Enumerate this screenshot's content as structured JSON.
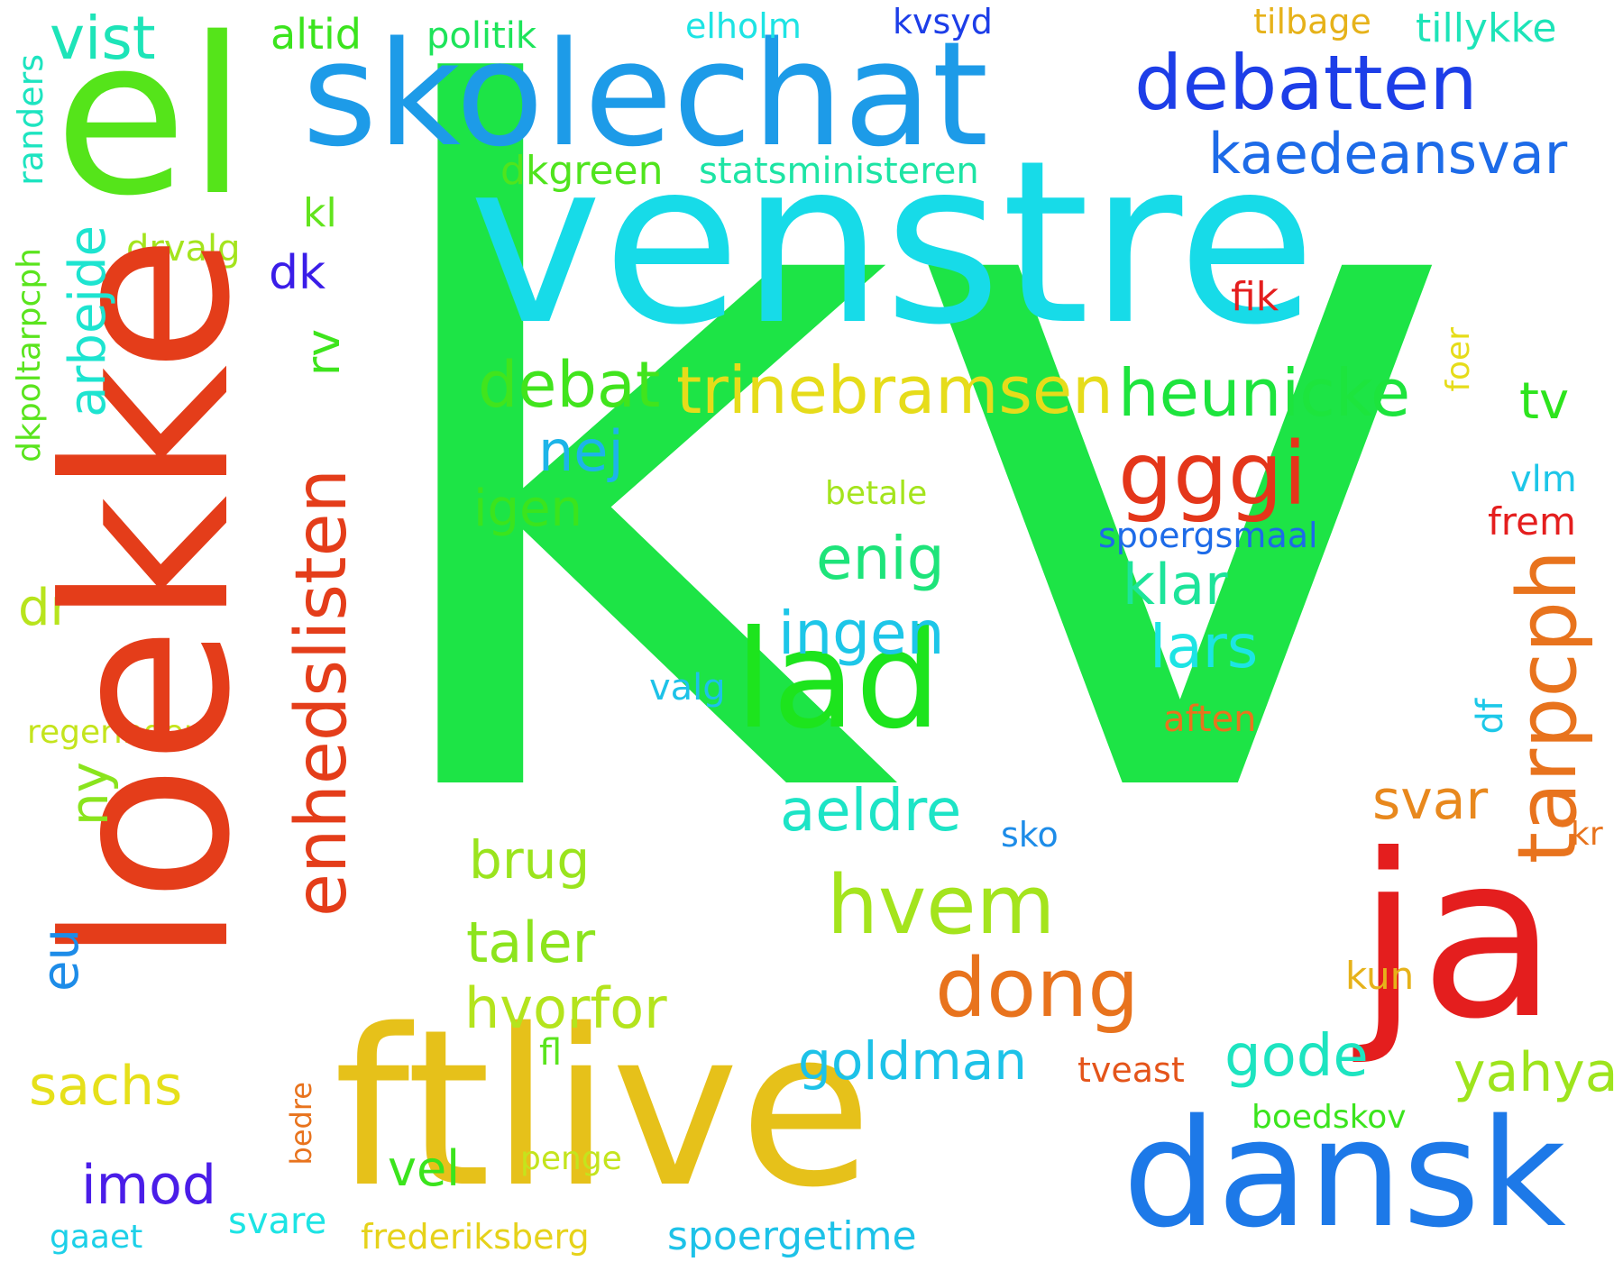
{
  "words": [
    {
      "id": "kv",
      "text": "kv",
      "color": "#1de446",
      "rot": false
    },
    {
      "id": "venstre",
      "text": "venstre",
      "color": "#17dbe8",
      "rot": false
    },
    {
      "id": "loekke",
      "text": "loekke",
      "color": "#e43d1a",
      "rot": true
    },
    {
      "id": "el",
      "text": "el",
      "color": "#55e41a",
      "rot": false
    },
    {
      "id": "skolechat",
      "text": "skolechat",
      "color": "#1d9be8",
      "rot": false
    },
    {
      "id": "ftlive",
      "text": "ftlive",
      "color": "#e6c11a",
      "rot": false
    },
    {
      "id": "ja",
      "text": "ja",
      "color": "#e41e1e",
      "rot": false
    },
    {
      "id": "dansk",
      "text": "dansk",
      "color": "#1d79e8",
      "rot": false
    },
    {
      "id": "lad",
      "text": "lad",
      "color": "#1de41d",
      "rot": false
    },
    {
      "id": "debatten",
      "text": "debatten",
      "color": "#1d3ee8",
      "rot": false
    },
    {
      "id": "enhedslisten",
      "text": "enhedslisten",
      "color": "#e43d1a",
      "rot": true
    },
    {
      "id": "tarpcph",
      "text": "tarpcph",
      "color": "#e8731d",
      "rot": true
    },
    {
      "id": "kaedeansvar",
      "text": "kaedeansvar",
      "color": "#1d6be8",
      "rot": false
    },
    {
      "id": "heunicke",
      "text": "heunicke",
      "color": "#1de43d",
      "rot": false
    },
    {
      "id": "trinebramsen",
      "text": "trinebramsen",
      "color": "#e6dc1a",
      "rot": false
    },
    {
      "id": "gggi",
      "text": "gggi",
      "color": "#e4361a",
      "rot": false
    },
    {
      "id": "dong",
      "text": "dong",
      "color": "#e8731d",
      "rot": false
    },
    {
      "id": "hvem",
      "text": "hvem",
      "color": "#a4e41d",
      "rot": false
    },
    {
      "id": "vist",
      "text": "vist",
      "color": "#1de4b8",
      "rot": false
    },
    {
      "id": "debat",
      "text": "debat",
      "color": "#41e41d",
      "rot": false
    },
    {
      "id": "arbejde",
      "text": "arbejde",
      "color": "#1de4d0",
      "rot": true
    },
    {
      "id": "nej",
      "text": "nej",
      "color": "#1db4e8",
      "rot": false
    },
    {
      "id": "enig",
      "text": "enig",
      "color": "#1de47a",
      "rot": false
    },
    {
      "id": "ingen",
      "text": "ingen",
      "color": "#1dc6e8",
      "rot": false
    },
    {
      "id": "klar",
      "text": "klar",
      "color": "#1de49a",
      "rot": false
    },
    {
      "id": "lars",
      "text": "lars",
      "color": "#1de4e4",
      "rot": false
    },
    {
      "id": "aeldre",
      "text": "aeldre",
      "color": "#1de4c6",
      "rot": false
    },
    {
      "id": "igen",
      "text": "igen",
      "color": "#3be41d",
      "rot": false
    },
    {
      "id": "tv",
      "text": "tv",
      "color": "#2de41d",
      "rot": false
    },
    {
      "id": "svar",
      "text": "svar",
      "color": "#e8881d",
      "rot": false
    },
    {
      "id": "gode",
      "text": "gode",
      "color": "#1de4c0",
      "rot": false
    },
    {
      "id": "yahya",
      "text": "yahya",
      "color": "#9ee41d",
      "rot": false
    },
    {
      "id": "hvorfor",
      "text": "hvorfor",
      "color": "#b4e41d",
      "rot": false
    },
    {
      "id": "taler",
      "text": "taler",
      "color": "#8ce41d",
      "rot": false
    },
    {
      "id": "brug",
      "text": "brug",
      "color": "#9ae41d",
      "rot": false
    },
    {
      "id": "goldman",
      "text": "goldman",
      "color": "#1dc2e8",
      "rot": false
    },
    {
      "id": "sachs",
      "text": "sachs",
      "color": "#e6e01a",
      "rot": false
    },
    {
      "id": "imod",
      "text": "imod",
      "color": "#4a1de8",
      "rot": false
    },
    {
      "id": "eu",
      "text": "eu",
      "color": "#1d8ce8",
      "rot": true
    },
    {
      "id": "ny",
      "text": "ny",
      "color": "#8ae41d",
      "rot": true
    },
    {
      "id": "dr",
      "text": "dr",
      "color": "#b8e41d",
      "rot": false
    },
    {
      "id": "rv",
      "text": "rv",
      "color": "#3ee41d",
      "rot": true
    },
    {
      "id": "dk",
      "text": "dk",
      "color": "#3a1de8",
      "rot": false
    },
    {
      "id": "altid",
      "text": "altid",
      "color": "#3be41d",
      "rot": false
    },
    {
      "id": "politik",
      "text": "politik",
      "color": "#1de45a",
      "rot": false
    },
    {
      "id": "elholm",
      "text": "elholm",
      "color": "#1de4e4",
      "rot": false
    },
    {
      "id": "kvsyd",
      "text": "kvsyd",
      "color": "#1d3ee8",
      "rot": false
    },
    {
      "id": "tilbage",
      "text": "tilbage",
      "color": "#e6b21a",
      "rot": false
    },
    {
      "id": "tillykke",
      "text": "tillykke",
      "color": "#1de4b8",
      "rot": false
    },
    {
      "id": "dkgreen",
      "text": "dkgreen",
      "color": "#50e41d",
      "rot": false
    },
    {
      "id": "statsministeren",
      "text": "statsministeren",
      "color": "#1de4a4",
      "rot": false
    },
    {
      "id": "kl",
      "text": "kl",
      "color": "#62e41d",
      "rot": false
    },
    {
      "id": "drvalg",
      "text": "drvalg",
      "color": "#a4e41d",
      "rot": false
    },
    {
      "id": "randers",
      "text": "randers",
      "color": "#1de4c0",
      "rot": true
    },
    {
      "id": "dkpoltarpcph",
      "text": "dkpoltarpcph",
      "color": "#5ae41d",
      "rot": true
    },
    {
      "id": "fik",
      "text": "fik",
      "color": "#e41e1e",
      "rot": false
    },
    {
      "id": "foer",
      "text": "foer",
      "color": "#e6dc1a",
      "rot": true
    },
    {
      "id": "betale",
      "text": "betale",
      "color": "#a4e41d",
      "rot": false
    },
    {
      "id": "vlm",
      "text": "vlm",
      "color": "#1dc6e8",
      "rot": false
    },
    {
      "id": "spoergsmaal",
      "text": "spoergsmaal",
      "color": "#1d6be8",
      "rot": false
    },
    {
      "id": "frem",
      "text": "frem",
      "color": "#e41e1e",
      "rot": false
    },
    {
      "id": "df",
      "text": "df",
      "color": "#1dc8e8",
      "rot": true
    },
    {
      "id": "valg",
      "text": "valg",
      "color": "#1dc2e8",
      "rot": false
    },
    {
      "id": "aften",
      "text": "aften",
      "color": "#e8731d",
      "rot": false
    },
    {
      "id": "regeringen",
      "text": "regeringen",
      "color": "#c4e41d",
      "rot": false
    },
    {
      "id": "sko",
      "text": "sko",
      "color": "#1d8ce8",
      "rot": false
    },
    {
      "id": "kr",
      "text": "kr",
      "color": "#e8731d",
      "rot": false
    },
    {
      "id": "kun",
      "text": "kun",
      "color": "#e6b21a",
      "rot": false
    },
    {
      "id": "fl",
      "text": "fl",
      "color": "#5ae41d",
      "rot": false
    },
    {
      "id": "tveast",
      "text": "tveast",
      "color": "#e4541a",
      "rot": false
    },
    {
      "id": "boedskov",
      "text": "boedskov",
      "color": "#3be41d",
      "rot": false
    },
    {
      "id": "bedre",
      "text": "bedre",
      "color": "#e8731d",
      "rot": true
    },
    {
      "id": "penge",
      "text": "penge",
      "color": "#c4e41d",
      "rot": false
    },
    {
      "id": "vel",
      "text": "vel",
      "color": "#3be41d",
      "rot": false
    },
    {
      "id": "svare",
      "text": "svare",
      "color": "#1de4e4",
      "rot": false
    },
    {
      "id": "frederiksberg",
      "text": "frederiksberg",
      "color": "#e6d21a",
      "rot": false
    },
    {
      "id": "spoergetime",
      "text": "spoergetime",
      "color": "#1dc2e8",
      "rot": false
    },
    {
      "id": "gaaet",
      "text": "gaaet",
      "color": "#1dd0e8",
      "rot": false
    }
  ]
}
